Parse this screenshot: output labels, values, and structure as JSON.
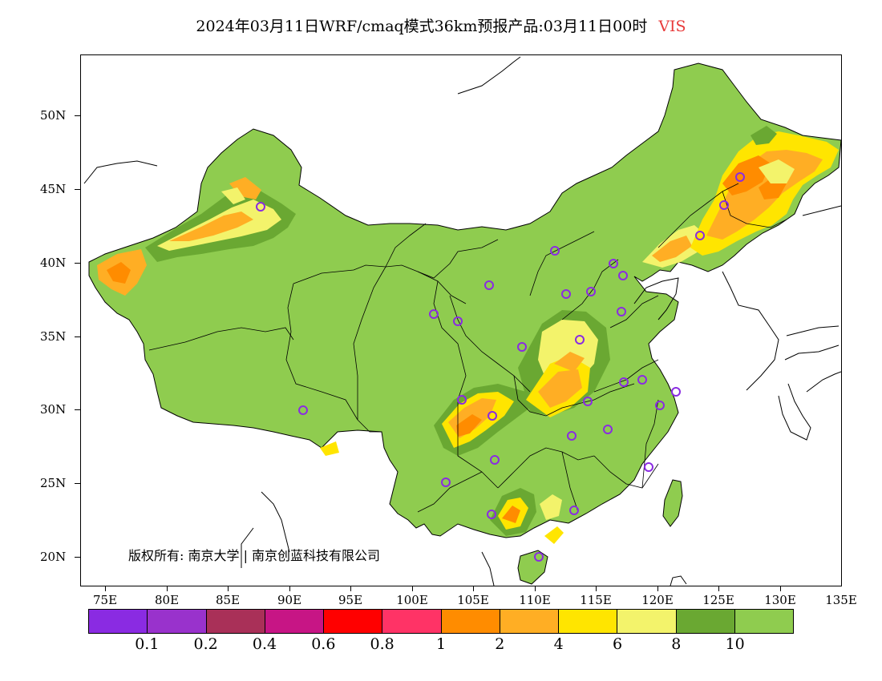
{
  "title": {
    "main": "2024年03月11日WRF/cmaq模式36km预报产品:03月11日00时",
    "variable": "VIS"
  },
  "axes": {
    "y_labels": [
      "50N",
      "45N",
      "40N",
      "35N",
      "30N",
      "25N",
      "20N"
    ],
    "x_labels": [
      "75E",
      "80E",
      "85E",
      "90E",
      "95E",
      "100E",
      "105E",
      "110E",
      "115E",
      "120E",
      "125E",
      "130E",
      "135E"
    ]
  },
  "legend": {
    "colors": [
      "#8a2be2",
      "#9932cc",
      "#a93058",
      "#c71585",
      "#ff0000",
      "#ff3366",
      "#ff8c00",
      "#ffae24",
      "#ffe500",
      "#f3f36b",
      "#6aa832",
      "#8fcc4f"
    ],
    "labels": [
      "0.1",
      "0.2",
      "0.4",
      "0.6",
      "0.8",
      "1",
      "2",
      "4",
      "6",
      "8",
      "10"
    ]
  },
  "copyright": "版权所有: 南京大学 | 南京创蓝科技有限公司",
  "colors": {
    "land": "#8fcc4f",
    "dark_green": "#6aa832",
    "light_yellow": "#f3f36b",
    "yellow": "#ffe500",
    "orange": "#ffae24",
    "deep_orange": "#ff8c00",
    "city_marker": "#8a2be2",
    "title_variable": "#e83a3a"
  }
}
